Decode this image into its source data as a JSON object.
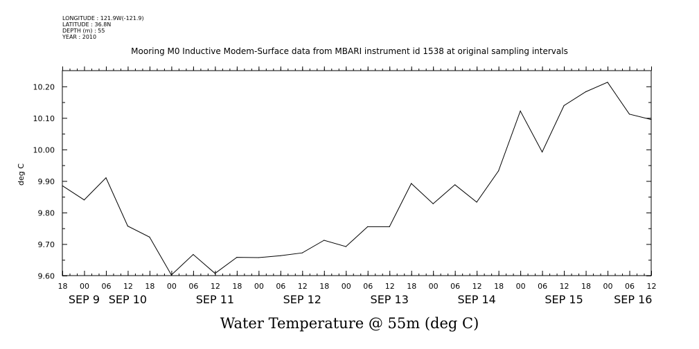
{
  "header": {
    "longitude": "LONGITUDE : 121.9W(-121.9)",
    "latitude": "LATITUDE : 36.8N",
    "depth": "DEPTH (m) : 55",
    "year": "YEAR : 2010"
  },
  "title": "Mooring M0 Inductive Modem-Surface data from MBARI instrument id 1538 at original sampling intervals",
  "footer": "Water Temperature @ 55m (deg C)",
  "chart_data": {
    "type": "line",
    "ylabel": "deg C",
    "ylim": [
      9.6,
      10.25
    ],
    "yticks": [
      9.6,
      9.7,
      9.8,
      9.9,
      10.0,
      10.1,
      10.2
    ],
    "ytick_labels": [
      "9.60",
      "9.70",
      "9.80",
      "9.90",
      "10.00",
      "10.10",
      "10.20"
    ],
    "x_unit": "hours since Sep 8 18:00",
    "xlim": [
      0,
      162
    ],
    "hour_ticks": [
      {
        "t": 0,
        "label": "18"
      },
      {
        "t": 6,
        "label": "00"
      },
      {
        "t": 12,
        "label": "06"
      },
      {
        "t": 18,
        "label": "12"
      },
      {
        "t": 24,
        "label": "18"
      },
      {
        "t": 30,
        "label": "00"
      },
      {
        "t": 36,
        "label": "06"
      },
      {
        "t": 42,
        "label": "12"
      },
      {
        "t": 48,
        "label": "18"
      },
      {
        "t": 54,
        "label": "00"
      },
      {
        "t": 60,
        "label": "06"
      },
      {
        "t": 66,
        "label": "12"
      },
      {
        "t": 72,
        "label": "18"
      },
      {
        "t": 78,
        "label": "00"
      },
      {
        "t": 84,
        "label": "06"
      },
      {
        "t": 90,
        "label": "12"
      },
      {
        "t": 96,
        "label": "18"
      },
      {
        "t": 102,
        "label": "00"
      },
      {
        "t": 108,
        "label": "06"
      },
      {
        "t": 114,
        "label": "12"
      },
      {
        "t": 120,
        "label": "18"
      },
      {
        "t": 126,
        "label": "00"
      },
      {
        "t": 132,
        "label": "06"
      },
      {
        "t": 138,
        "label": "12"
      },
      {
        "t": 144,
        "label": "18"
      },
      {
        "t": 150,
        "label": "00"
      },
      {
        "t": 156,
        "label": "06"
      },
      {
        "t": 162,
        "label": "12"
      }
    ],
    "day_labels": [
      {
        "t": 6,
        "label": "SEP  9"
      },
      {
        "t": 18,
        "label": "SEP 10"
      },
      {
        "t": 42,
        "label": "SEP 11"
      },
      {
        "t": 66,
        "label": "SEP 12"
      },
      {
        "t": 90,
        "label": "SEP 13"
      },
      {
        "t": 114,
        "label": "SEP 14"
      },
      {
        "t": 138,
        "label": "SEP 15"
      },
      {
        "t": 157,
        "label": "SEP 16"
      }
    ],
    "series": [
      {
        "name": "Water Temperature @ 55m",
        "x": [
          0,
          6,
          12,
          18,
          24,
          30,
          36,
          42,
          48,
          54,
          60,
          66,
          72,
          78,
          84,
          90,
          96,
          102,
          108,
          114,
          120,
          126,
          132,
          138,
          144,
          150,
          156,
          162
        ],
        "values": [
          9.885,
          9.84,
          9.91,
          9.757,
          9.722,
          9.602,
          9.667,
          9.607,
          9.658,
          9.657,
          9.663,
          9.672,
          9.712,
          9.692,
          9.755,
          9.755,
          9.892,
          9.828,
          9.888,
          9.833,
          9.932,
          10.122,
          9.992,
          10.139,
          10.183,
          10.213,
          10.112,
          10.095
        ]
      }
    ]
  }
}
